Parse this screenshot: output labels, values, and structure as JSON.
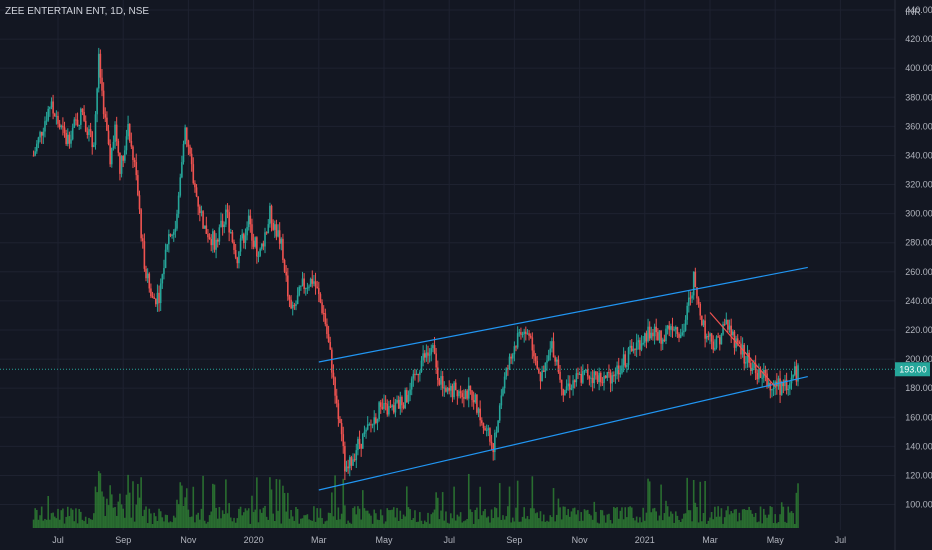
{
  "header": {
    "symbol": "ZEE ENTERTAIN ENT, 1D, NSE"
  },
  "colors": {
    "bg": "#131722",
    "grid": "#1e2230",
    "text": "#b2b5be",
    "up": "#26a69a",
    "down": "#ef5350",
    "vol_up": "#2e7d32",
    "vol_down": "#2e7d32",
    "channel": "#2196f3",
    "wedge": "#ef5350"
  },
  "chart_data": {
    "type": "candlestick",
    "title": "ZEE ENTERTAIN ENT, 1D, NSE",
    "currency": "INR",
    "last_price": "193.00",
    "y_ticks": [
      "440.00",
      "420.00",
      "400.00",
      "380.00",
      "360.00",
      "340.00",
      "320.00",
      "300.00",
      "280.00",
      "260.00",
      "240.00",
      "220.00",
      "200.00",
      "180.00",
      "160.00",
      "140.00",
      "120.00",
      "100.00"
    ],
    "x_ticks": [
      "Jul",
      "Sep",
      "Nov",
      "2020",
      "Mar",
      "May",
      "Jul",
      "Sep",
      "Nov",
      "2021",
      "Mar",
      "May",
      "Jul"
    ],
    "ylim": [
      100,
      440
    ],
    "price_path": [
      [
        "Jun 2019",
        340
      ],
      [
        "Jun 2019",
        375
      ],
      [
        "Jul 2019",
        350
      ],
      [
        "Jul 2019",
        370
      ],
      [
        "Aug 2019",
        345
      ],
      [
        "Aug 2019",
        405
      ],
      [
        "Aug 2019",
        370
      ],
      [
        "Aug 2019",
        335
      ],
      [
        "Aug 2019",
        360
      ],
      [
        "Aug 2019",
        330
      ],
      [
        "Sep 2019",
        360
      ],
      [
        "Sep 2019",
        330
      ],
      [
        "Sep 2019",
        270
      ],
      [
        "Sep 2019",
        240
      ],
      [
        "Oct 2019",
        245
      ],
      [
        "Oct 2019",
        285
      ],
      [
        "Oct 2019",
        290
      ],
      [
        "Oct 2019",
        360
      ],
      [
        "Nov 2019",
        320
      ],
      [
        "Nov 2019",
        290
      ],
      [
        "Nov 2019",
        280
      ],
      [
        "Dec 2019",
        300
      ],
      [
        "Dec 2019",
        270
      ],
      [
        "Dec 2019",
        295
      ],
      [
        "Jan 2020",
        270
      ],
      [
        "Jan 2020",
        300
      ],
      [
        "Jan 2020",
        280
      ],
      [
        "Feb 2020",
        230
      ],
      [
        "Feb 2020",
        250
      ],
      [
        "Feb 2020",
        255
      ],
      [
        "Mar 2020",
        230
      ],
      [
        "Mar 2020",
        180
      ],
      [
        "Mar 2020",
        120
      ],
      [
        "Apr 2020",
        140
      ],
      [
        "Apr 2020",
        150
      ],
      [
        "Apr 2020",
        165
      ],
      [
        "May 2020",
        165
      ],
      [
        "May 2020",
        175
      ],
      [
        "Jun 2020",
        200
      ],
      [
        "Jun 2020",
        205
      ],
      [
        "Jun 2020",
        175
      ],
      [
        "Jul 2020",
        180
      ],
      [
        "Jul 2020",
        175
      ],
      [
        "Aug 2020",
        150
      ],
      [
        "Aug 2020",
        140
      ],
      [
        "Aug 2020",
        180
      ],
      [
        "Aug 2020",
        200
      ],
      [
        "Sep 2020",
        220
      ],
      [
        "Sep 2020",
        215
      ],
      [
        "Sep 2020",
        185
      ],
      [
        "Oct 2020",
        210
      ],
      [
        "Oct 2020",
        180
      ],
      [
        "Oct 2020",
        185
      ],
      [
        "Nov 2020",
        190
      ],
      [
        "Nov 2020",
        185
      ],
      [
        "Dec 2020",
        195
      ],
      [
        "Dec 2020",
        210
      ],
      [
        "Jan 2021",
        220
      ],
      [
        "Jan 2021",
        215
      ],
      [
        "Jan 2021",
        225
      ],
      [
        "Feb 2021",
        218
      ],
      [
        "Feb 2021",
        255
      ],
      [
        "Feb 2021",
        220
      ],
      [
        "Mar 2021",
        210
      ],
      [
        "Mar 2021",
        225
      ],
      [
        "Mar 2021",
        210
      ],
      [
        "Apr 2021",
        195
      ],
      [
        "Apr 2021",
        185
      ],
      [
        "May 2021",
        180
      ],
      [
        "May 2021",
        193
      ]
    ],
    "channel": {
      "upper": [
        [
          "Mar 2020",
          198
        ],
        [
          "Jun 2021",
          263
        ]
      ],
      "lower": [
        [
          "Mar 2020",
          110
        ],
        [
          "Jun 2021",
          188
        ]
      ]
    },
    "wedge_line": [
      [
        "Mar 2021",
        232
      ],
      [
        "May 2021",
        181
      ]
    ]
  }
}
